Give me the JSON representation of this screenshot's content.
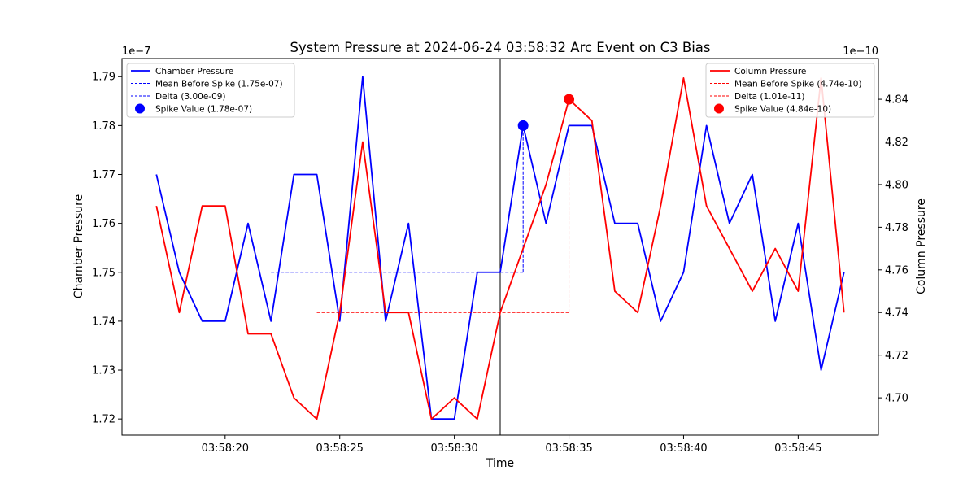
{
  "chart_data": {
    "type": "line",
    "title": "System Pressure at 2024-06-24 03:58:32 Arc Event on C3 Bias",
    "xlabel": "Time",
    "x_ticks": [
      "03:58:20",
      "03:58:25",
      "03:58:30",
      "03:58:35",
      "03:58:40",
      "03:58:45"
    ],
    "x": [
      "03:58:17",
      "03:58:18",
      "03:58:19",
      "03:58:20",
      "03:58:21",
      "03:58:22",
      "03:58:23",
      "03:58:24",
      "03:58:25",
      "03:58:26",
      "03:58:27",
      "03:58:28",
      "03:58:29",
      "03:58:30",
      "03:58:31",
      "03:58:32",
      "03:58:33",
      "03:58:34",
      "03:58:35",
      "03:58:36",
      "03:58:37",
      "03:58:38",
      "03:58:39",
      "03:58:40",
      "03:58:41",
      "03:58:42",
      "03:58:43",
      "03:58:44",
      "03:58:45",
      "03:58:46",
      "03:58:47"
    ],
    "xlim": [
      "03:58:15.5",
      "03:58:48.5"
    ],
    "event_time": "03:58:32",
    "left_axis": {
      "label": "Chamber Pressure",
      "multiplier": "1e−7",
      "ylim": [
        1.7167,
        1.7937
      ],
      "ticks": [
        "1.72",
        "1.73",
        "1.74",
        "1.75",
        "1.76",
        "1.77",
        "1.78",
        "1.79"
      ]
    },
    "right_axis": {
      "label": "Column Pressure",
      "multiplier": "1e−10",
      "ylim": [
        4.6825,
        4.8591
      ],
      "ticks": [
        "4.70",
        "4.72",
        "4.74",
        "4.76",
        "4.78",
        "4.80",
        "4.82",
        "4.84"
      ]
    },
    "series": [
      {
        "name": "Chamber Pressure",
        "axis": "left",
        "color": "#0000ff",
        "values": [
          1.77,
          1.75,
          1.74,
          1.74,
          1.76,
          1.74,
          1.77,
          1.77,
          1.74,
          1.79,
          1.74,
          1.76,
          1.72,
          1.72,
          1.75,
          1.75,
          1.78,
          1.76,
          1.78,
          1.78,
          1.76,
          1.76,
          1.74,
          1.75,
          1.78,
          1.76,
          1.77,
          1.74,
          1.76,
          1.73,
          1.75
        ],
        "mean_before_spike": {
          "value": 1.75,
          "x_start": "03:58:22",
          "x_end": "03:58:33"
        },
        "delta": {
          "x": "03:58:33",
          "from": 1.75,
          "to": 1.78
        },
        "spike": {
          "x": "03:58:33",
          "value": 1.78
        }
      },
      {
        "name": "Column Pressure",
        "axis": "right",
        "color": "#ff0000",
        "values": [
          4.79,
          4.74,
          4.79,
          4.79,
          4.73,
          4.73,
          4.7,
          4.69,
          4.74,
          4.82,
          4.74,
          4.74,
          4.69,
          4.7,
          4.69,
          4.74,
          4.77,
          4.8,
          4.84,
          4.83,
          4.75,
          4.74,
          4.79,
          4.85,
          4.79,
          4.77,
          4.75,
          4.77,
          4.75,
          4.85,
          4.74
        ],
        "mean_before_spike": {
          "value": 4.74,
          "x_start": "03:58:24",
          "x_end": "03:58:35"
        },
        "delta": {
          "x": "03:58:35",
          "from": 4.74,
          "to": 4.84
        },
        "spike": {
          "x": "03:58:35",
          "value": 4.84
        }
      }
    ],
    "legends": [
      {
        "placement": "upper-left",
        "entries": [
          {
            "label": "Chamber Pressure",
            "style": "line",
            "color": "#0000ff"
          },
          {
            "label": "Mean Before Spike (1.75e-07)",
            "style": "dashed",
            "color": "#0000ff"
          },
          {
            "label": "Delta (3.00e-09)",
            "style": "dashed",
            "color": "#0000ff"
          },
          {
            "label": "Spike Value (1.78e-07)",
            "style": "marker",
            "color": "#0000ff"
          }
        ]
      },
      {
        "placement": "upper-right",
        "entries": [
          {
            "label": "Column Pressure",
            "style": "line",
            "color": "#ff0000"
          },
          {
            "label": "Mean Before Spike (4.74e-10)",
            "style": "dashed",
            "color": "#ff0000"
          },
          {
            "label": "Delta (1.01e-11)",
            "style": "dashed",
            "color": "#ff0000"
          },
          {
            "label": "Spike Value (4.84e-10)",
            "style": "marker",
            "color": "#ff0000"
          }
        ]
      }
    ],
    "grid": false
  }
}
